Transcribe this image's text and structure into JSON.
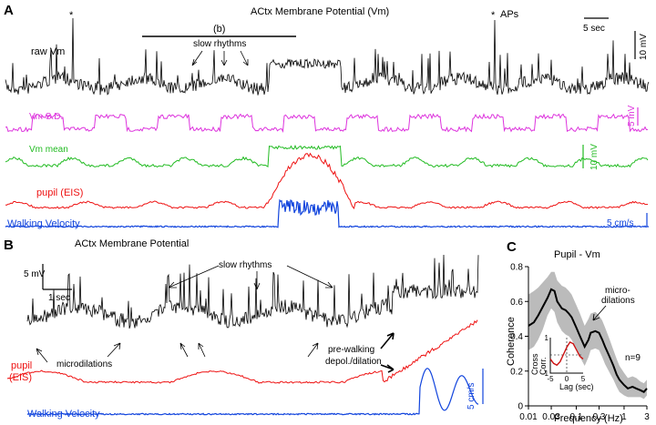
{
  "panel_a": {
    "letter": "A",
    "title": "ACtx Membrane Potential (Vm)",
    "section_label": "(b)",
    "slow_rhythms": "slow rhythms",
    "aps_label": "APs",
    "ap_marker": "*",
    "time_scale": "5 sec",
    "vm_scale": "10 mV",
    "traces": [
      {
        "name": "raw Vm",
        "color": "#000000"
      },
      {
        "name": "Vm S.D.",
        "color": "#dd33dd",
        "scale": "5 mV"
      },
      {
        "name": "Vm mean",
        "color": "#22bb22",
        "scale": "10 mV"
      },
      {
        "name": "pupil (EIS)",
        "color": "#ee1111"
      },
      {
        "name": "Walking Velocity",
        "color": "#1144dd",
        "scale": "5 cm/s"
      }
    ]
  },
  "panel_b": {
    "letter": "B",
    "title": "ACtx Membrane Potential",
    "slow_rhythms": "slow rhythms",
    "microdilations": "microdilations",
    "prewalking": "pre-walking",
    "prewalking2": "depol./dilation",
    "vm_scale": "5 mV",
    "time_scale": "1 sec",
    "pupil_label_1": "pupil",
    "pupil_label_2": "(EIS)",
    "velocity_label": "Walking Velocity",
    "velocity_scale": "5 cm/s",
    "colors": {
      "vm": "#000000",
      "pupil": "#ee1111",
      "velocity": "#1144dd"
    }
  },
  "chart_data": {
    "type": "line",
    "letter": "C",
    "title": "Pupil - Vm",
    "xlabel": "Frequency (Hz)",
    "ylabel": "Coherence",
    "xscale": "log",
    "xlim": [
      0.01,
      3
    ],
    "ylim": [
      0,
      0.8
    ],
    "xticks": [
      0.01,
      0.03,
      0.1,
      0.3,
      1,
      3
    ],
    "xtick_labels": [
      "0.01",
      "0.03",
      "0.1",
      "0.3",
      "1",
      "3"
    ],
    "yticks": [
      0,
      0.2,
      0.4,
      0.6,
      0.8
    ],
    "ytick_labels": [
      "0",
      "0.2",
      "0.4",
      "0.6",
      "0.8"
    ],
    "annotation_1": "micro-",
    "annotation_2": "dilations",
    "n_label": "n=9",
    "line_color": "#000000",
    "band_color": "#bbbbbb",
    "series": [
      {
        "x": [
          0.01,
          0.013,
          0.016,
          0.02,
          0.025,
          0.03,
          0.035,
          0.04,
          0.05,
          0.06,
          0.07,
          0.08,
          0.1,
          0.12,
          0.15,
          0.18,
          0.2,
          0.25,
          0.3,
          0.35,
          0.4,
          0.5,
          0.6,
          0.7,
          0.8,
          1.0,
          1.2,
          1.5,
          1.8,
          2.2,
          2.6,
          3.0
        ],
        "y": [
          0.46,
          0.48,
          0.52,
          0.57,
          0.62,
          0.67,
          0.66,
          0.6,
          0.56,
          0.55,
          0.53,
          0.51,
          0.45,
          0.4,
          0.34,
          0.38,
          0.42,
          0.43,
          0.42,
          0.38,
          0.34,
          0.28,
          0.23,
          0.18,
          0.15,
          0.12,
          0.1,
          0.11,
          0.1,
          0.09,
          0.08,
          0.1
        ],
        "lower": [
          0.32,
          0.34,
          0.38,
          0.44,
          0.52,
          0.56,
          0.54,
          0.48,
          0.43,
          0.41,
          0.4,
          0.38,
          0.33,
          0.28,
          0.23,
          0.28,
          0.32,
          0.33,
          0.32,
          0.28,
          0.24,
          0.19,
          0.15,
          0.11,
          0.08,
          0.06,
          0.05,
          0.05,
          0.05,
          0.05,
          0.04,
          0.06
        ],
        "upper": [
          0.64,
          0.66,
          0.68,
          0.71,
          0.74,
          0.77,
          0.77,
          0.72,
          0.69,
          0.68,
          0.66,
          0.64,
          0.58,
          0.53,
          0.46,
          0.5,
          0.53,
          0.54,
          0.52,
          0.49,
          0.45,
          0.38,
          0.32,
          0.27,
          0.23,
          0.19,
          0.16,
          0.17,
          0.16,
          0.14,
          0.13,
          0.15
        ]
      }
    ],
    "inset": {
      "xlabel": "Lag (sec)",
      "ylabel_1": "Cross",
      "ylabel_2": "Corr.",
      "xticks": [
        -5,
        0,
        5
      ],
      "xtick_labels": [
        "-5",
        "0",
        "5"
      ],
      "yticks": [
        -1,
        1
      ],
      "ytick_labels": [
        "-1",
        "1"
      ],
      "xlim": [
        -5,
        5
      ],
      "ylim": [
        -1,
        1
      ],
      "x": [
        -5,
        -4,
        -3,
        -2,
        -1,
        0,
        1,
        2,
        3,
        4,
        5
      ],
      "y": [
        -0.2,
        -0.45,
        -0.55,
        -0.35,
        0.05,
        0.45,
        0.75,
        0.65,
        0.3,
        -0.05,
        -0.2
      ],
      "color": "#cc1111"
    }
  }
}
